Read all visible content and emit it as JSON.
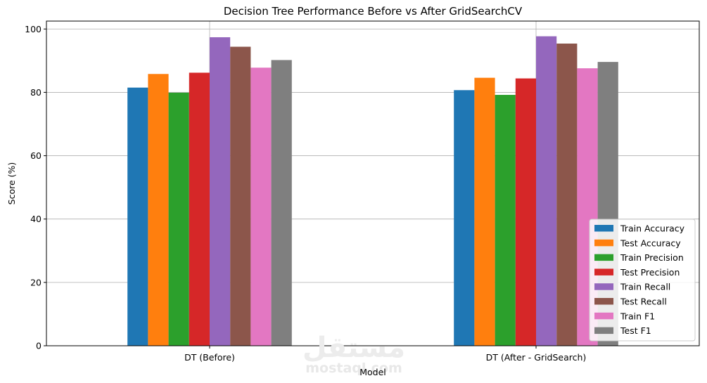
{
  "chart_data": {
    "type": "bar",
    "title": "Decision Tree Performance Before vs After GridSearchCV",
    "xlabel": "Model",
    "ylabel": "Score (%)",
    "ylim": [
      0,
      102.5
    ],
    "yticks": [
      0,
      20,
      40,
      60,
      80,
      100
    ],
    "grid": true,
    "legend_position": "lower-right",
    "categories": [
      "DT (Before)",
      "DT (After - GridSearch)"
    ],
    "series": [
      {
        "name": "Train Accuracy",
        "color": "#1f77b4",
        "values": [
          81.5,
          80.7
        ]
      },
      {
        "name": "Test Accuracy",
        "color": "#ff7f0e",
        "values": [
          85.8,
          84.6
        ]
      },
      {
        "name": "Train Precision",
        "color": "#2ca02c",
        "values": [
          79.9,
          79.2
        ]
      },
      {
        "name": "Test Precision",
        "color": "#d62728",
        "values": [
          86.2,
          84.4
        ]
      },
      {
        "name": "Train Recall",
        "color": "#9467bd",
        "values": [
          97.4,
          97.7
        ]
      },
      {
        "name": "Test Recall",
        "color": "#8c564b",
        "values": [
          94.4,
          95.4
        ]
      },
      {
        "name": "Train F1",
        "color": "#e377c2",
        "values": [
          87.8,
          87.6
        ]
      },
      {
        "name": "Test F1",
        "color": "#7f7f7f",
        "values": [
          90.2,
          89.6
        ]
      }
    ]
  },
  "watermark": {
    "logo": "مستقل",
    "text": "mostaql.com"
  }
}
